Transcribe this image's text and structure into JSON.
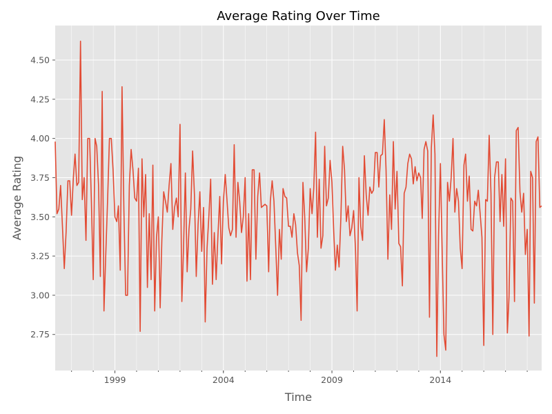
{
  "chart_data": {
    "type": "line",
    "title": "Average Rating Over Time",
    "xlabel": "Time",
    "ylabel": "Average Rating",
    "xlim": [
      "1996-04-01",
      "2018-09-01"
    ],
    "ylim": [
      2.52,
      4.72
    ],
    "x_major_ticks": [
      "1999-01-01",
      "2004-01-01",
      "2009-01-01",
      "2014-01-01"
    ],
    "x_major_tick_labels": [
      "1999",
      "2004",
      "2009",
      "2014"
    ],
    "y_ticks": [
      2.75,
      3.0,
      3.25,
      3.5,
      3.75,
      4.0,
      4.25,
      4.5
    ],
    "y_tick_labels": [
      "2.75",
      "3.00",
      "3.25",
      "3.50",
      "3.75",
      "4.00",
      "4.25",
      "4.50"
    ],
    "grid": true,
    "style": "ggplot",
    "colors": {
      "line": "#E24A33",
      "plot_bg": "#E5E5E5",
      "grid": "#FFFFFF",
      "text": "#555555"
    },
    "series": [
      {
        "x": [
          "1996-04",
          "1996-05",
          "1996-06",
          "1996-07",
          "1996-08",
          "1996-09",
          "1996-10",
          "1996-11",
          "1996-12",
          "1997-01",
          "1997-02",
          "1997-03",
          "1997-04",
          "1997-05",
          "1997-06",
          "1997-07",
          "1997-08",
          "1997-09",
          "1997-10",
          "1997-11",
          "1997-12",
          "1998-01",
          "1998-02",
          "1998-03",
          "1998-04",
          "1998-05",
          "1998-06",
          "1998-07",
          "1998-08",
          "1998-09",
          "1998-10",
          "1998-11",
          "1998-12",
          "1999-01",
          "1999-02",
          "1999-03",
          "1999-04",
          "1999-05",
          "1999-06",
          "1999-07",
          "1999-08",
          "1999-09",
          "1999-10",
          "1999-11",
          "1999-12",
          "2000-01",
          "2000-02",
          "2000-03",
          "2000-04",
          "2000-05",
          "2000-06",
          "2000-07",
          "2000-08",
          "2000-09",
          "2000-10",
          "2000-11",
          "2000-12",
          "2001-01",
          "2001-02",
          "2001-03",
          "2001-04",
          "2001-05",
          "2001-06",
          "2001-07",
          "2001-08",
          "2001-09",
          "2001-10",
          "2001-11",
          "2001-12",
          "2002-01",
          "2002-02",
          "2002-03",
          "2002-04",
          "2002-05",
          "2002-06",
          "2002-07",
          "2002-08",
          "2002-09",
          "2002-10",
          "2002-11",
          "2002-12",
          "2003-01",
          "2003-02",
          "2003-03",
          "2003-04",
          "2003-05",
          "2003-06",
          "2003-07",
          "2003-08",
          "2003-09",
          "2003-10",
          "2003-11",
          "2003-12",
          "2004-01",
          "2004-02",
          "2004-03",
          "2004-04",
          "2004-05",
          "2004-06",
          "2004-07",
          "2004-08",
          "2004-09",
          "2004-10",
          "2004-11",
          "2004-12",
          "2005-01",
          "2005-02",
          "2005-03",
          "2005-04",
          "2005-05",
          "2005-06",
          "2005-07",
          "2005-08",
          "2005-09",
          "2005-10",
          "2005-11",
          "2005-12",
          "2006-01",
          "2006-02",
          "2006-03",
          "2006-04",
          "2006-05",
          "2006-06",
          "2006-07",
          "2006-08",
          "2006-09",
          "2006-10",
          "2006-11",
          "2006-12",
          "2007-01",
          "2007-02",
          "2007-03",
          "2007-04",
          "2007-05",
          "2007-06",
          "2007-07",
          "2007-08",
          "2007-09",
          "2007-10",
          "2007-11",
          "2007-12",
          "2008-01",
          "2008-02",
          "2008-03",
          "2008-04",
          "2008-05",
          "2008-06",
          "2008-07",
          "2008-08",
          "2008-09",
          "2008-10",
          "2008-11",
          "2008-12",
          "2009-01",
          "2009-02",
          "2009-03",
          "2009-04",
          "2009-05",
          "2009-06",
          "2009-07",
          "2009-08",
          "2009-09",
          "2009-10",
          "2009-11",
          "2009-12",
          "2010-01",
          "2010-02",
          "2010-03",
          "2010-04",
          "2010-05",
          "2010-06",
          "2010-07",
          "2010-08",
          "2010-09",
          "2010-10",
          "2010-11",
          "2010-12",
          "2011-01",
          "2011-02",
          "2011-03",
          "2011-04",
          "2011-05",
          "2011-06",
          "2011-07",
          "2011-08",
          "2011-09",
          "2011-10",
          "2011-11",
          "2011-12",
          "2012-01",
          "2012-02",
          "2012-03",
          "2012-04",
          "2012-05",
          "2012-06",
          "2012-07",
          "2012-08",
          "2012-09",
          "2012-10",
          "2012-11",
          "2012-12",
          "2013-01",
          "2013-02",
          "2013-03",
          "2013-04",
          "2013-05",
          "2013-06",
          "2013-07",
          "2013-08",
          "2013-09",
          "2013-10",
          "2013-11",
          "2013-12",
          "2014-01",
          "2014-02",
          "2014-03",
          "2014-04",
          "2014-05",
          "2014-06",
          "2014-07",
          "2014-08",
          "2014-09",
          "2014-10",
          "2014-11",
          "2014-12",
          "2015-01",
          "2015-02",
          "2015-03",
          "2015-04",
          "2015-05",
          "2015-06",
          "2015-07",
          "2015-08",
          "2015-09",
          "2015-10",
          "2015-11",
          "2015-12",
          "2016-01",
          "2016-02",
          "2016-03",
          "2016-04",
          "2016-05",
          "2016-06",
          "2016-07",
          "2016-08",
          "2016-09",
          "2016-10",
          "2016-11",
          "2016-12",
          "2017-01",
          "2017-02",
          "2017-03",
          "2017-04",
          "2017-05",
          "2017-06",
          "2017-07",
          "2017-08",
          "2017-09",
          "2017-10",
          "2017-11",
          "2017-12",
          "2018-01",
          "2018-02",
          "2018-03",
          "2018-04",
          "2018-05",
          "2018-06",
          "2018-07",
          "2018-08",
          "2018-09"
        ],
        "values": [
          3.98,
          3.52,
          3.55,
          3.7,
          3.44,
          3.17,
          3.4,
          3.73,
          3.73,
          3.51,
          3.75,
          3.9,
          3.7,
          3.72,
          4.62,
          3.61,
          3.75,
          3.35,
          4.0,
          4.0,
          3.6,
          3.1,
          4.0,
          3.95,
          3.7,
          3.12,
          4.3,
          2.9,
          3.27,
          3.62,
          4.0,
          4.0,
          3.8,
          3.5,
          3.47,
          3.57,
          3.16,
          4.33,
          3.55,
          3.0,
          3.0,
          3.7,
          3.93,
          3.8,
          3.62,
          3.6,
          3.81,
          2.77,
          3.87,
          3.5,
          3.77,
          3.05,
          3.52,
          3.1,
          3.83,
          2.9,
          3.37,
          3.5,
          2.92,
          3.35,
          3.66,
          3.6,
          3.53,
          3.7,
          3.84,
          3.42,
          3.56,
          3.62,
          3.5,
          4.09,
          2.96,
          3.3,
          3.78,
          3.15,
          3.42,
          3.55,
          3.92,
          3.64,
          3.12,
          3.45,
          3.66,
          3.28,
          3.56,
          2.83,
          3.3,
          3.5,
          3.74,
          3.07,
          3.4,
          3.1,
          3.38,
          3.63,
          3.2,
          3.6,
          3.77,
          3.61,
          3.43,
          3.38,
          3.42,
          3.96,
          3.37,
          3.72,
          3.6,
          3.4,
          3.5,
          3.75,
          3.09,
          3.52,
          3.1,
          3.8,
          3.8,
          3.23,
          3.63,
          3.78,
          3.56,
          3.57,
          3.58,
          3.57,
          3.15,
          3.6,
          3.73,
          3.6,
          3.3,
          3.0,
          3.42,
          3.23,
          3.68,
          3.63,
          3.62,
          3.44,
          3.44,
          3.37,
          3.52,
          3.45,
          3.27,
          3.19,
          2.84,
          3.72,
          3.5,
          3.15,
          3.3,
          3.68,
          3.52,
          3.68,
          4.04,
          3.37,
          3.74,
          3.3,
          3.38,
          3.95,
          3.57,
          3.62,
          3.86,
          3.72,
          3.4,
          3.16,
          3.32,
          3.18,
          3.5,
          3.95,
          3.8,
          3.47,
          3.57,
          3.38,
          3.43,
          3.54,
          3.3,
          2.9,
          3.75,
          3.44,
          3.35,
          3.89,
          3.64,
          3.51,
          3.69,
          3.65,
          3.67,
          3.91,
          3.91,
          3.69,
          3.89,
          3.9,
          4.12,
          3.8,
          3.23,
          3.64,
          3.42,
          3.98,
          3.55,
          3.79,
          3.33,
          3.31,
          3.06,
          3.65,
          3.69,
          3.84,
          3.9,
          3.87,
          3.71,
          3.82,
          3.73,
          3.78,
          3.75,
          3.49,
          3.93,
          3.98,
          3.92,
          2.86,
          3.94,
          4.15,
          3.9,
          2.61,
          3.38,
          3.84,
          3.25,
          2.75,
          2.65,
          3.72,
          3.6,
          3.75,
          4.0,
          3.53,
          3.68,
          3.6,
          3.3,
          3.17,
          3.83,
          3.9,
          3.6,
          3.76,
          3.42,
          3.41,
          3.6,
          3.57,
          3.67,
          3.52,
          3.37,
          2.68,
          3.61,
          3.6,
          4.02,
          3.65,
          2.75,
          3.75,
          3.85,
          3.85,
          3.47,
          3.77,
          3.44,
          3.87,
          2.76,
          2.99,
          3.62,
          3.6,
          2.96,
          4.05,
          4.07,
          3.66,
          3.53,
          3.65,
          3.26,
          3.42,
          2.74,
          3.79,
          3.75,
          2.95,
          3.98,
          4.01,
          3.56,
          3.57
        ]
      }
    ]
  }
}
